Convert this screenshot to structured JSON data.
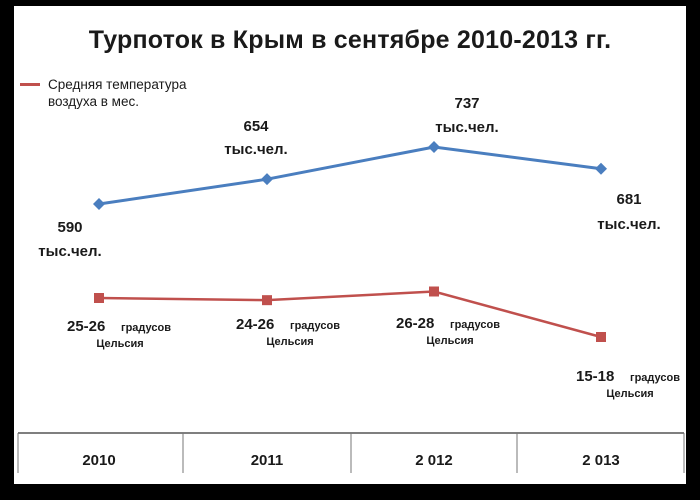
{
  "chart_data": {
    "type": "line",
    "title": "Турпоток в Крым в сентябре 2010-2013 гг.",
    "categories": [
      "2010",
      "2011",
      "2 012",
      "2 013"
    ],
    "series": [
      {
        "name": "",
        "values": [
          590,
          654,
          737,
          681
        ],
        "color": "#4a7ebf",
        "marker": "diamond",
        "labels": [
          [
            "590",
            "тыс.чел."
          ],
          [
            "654",
            "тыс.чел."
          ],
          [
            "737",
            "тыс.чел."
          ],
          [
            "681",
            "тыс.чел."
          ]
        ]
      },
      {
        "name": "Средняя температура воздуха в мес.",
        "values": [
          25.5,
          25,
          27,
          16.5
        ],
        "color": "#c0504d",
        "marker": "square",
        "labels": [
          [
            "25-26",
            "градусов",
            "Цельсия"
          ],
          [
            "24-26",
            "градусов",
            "Цельсия"
          ],
          [
            "26-28",
            "градусов",
            "Цельсия"
          ],
          [
            "15-18",
            "градусов",
            "Цельсия"
          ]
        ]
      }
    ],
    "legend_position": "top-left",
    "grid": false
  }
}
